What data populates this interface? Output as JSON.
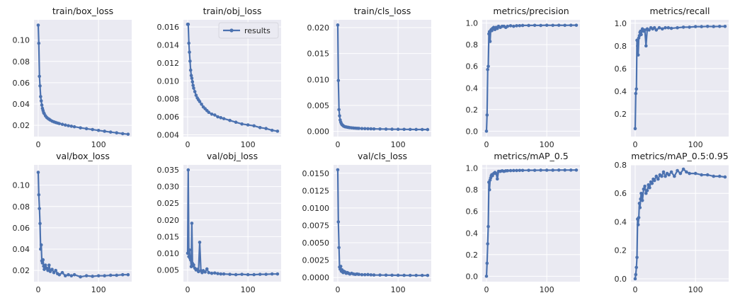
{
  "figure": {
    "background": "#ffffff",
    "panel_background": "#eaeaf2",
    "grid_color": "#ffffff",
    "line_color": "#4c72b0",
    "legend": {
      "label": "results",
      "panel": "train/obj_loss",
      "placement": "upper right"
    }
  },
  "chart_data": [
    {
      "type": "line",
      "title": "train/box_loss",
      "xlim": [
        -7,
        155
      ],
      "ylim": [
        0.0095,
        0.119
      ],
      "xticks": [
        0,
        100
      ],
      "xticklabels": [
        "0",
        "100"
      ],
      "yticks": [
        0.02,
        0.04,
        0.06,
        0.08,
        0.1
      ],
      "yticklabels": [
        "0.02",
        "0.04",
        "0.06",
        "0.08",
        "0.10"
      ],
      "series": [
        {
          "name": "results",
          "x": [
            0,
            1,
            2,
            3,
            4,
            5,
            6,
            7,
            8,
            9,
            10,
            12,
            14,
            16,
            18,
            20,
            23,
            26,
            29,
            32,
            35,
            40,
            45,
            50,
            55,
            60,
            70,
            80,
            90,
            100,
            110,
            120,
            130,
            140,
            149
          ],
          "y": [
            0.114,
            0.097,
            0.066,
            0.057,
            0.047,
            0.043,
            0.039,
            0.036,
            0.034,
            0.032,
            0.031,
            0.029,
            0.0275,
            0.0265,
            0.0258,
            0.025,
            0.024,
            0.0233,
            0.0227,
            0.0222,
            0.0217,
            0.021,
            0.0203,
            0.0197,
            0.0192,
            0.0187,
            0.0177,
            0.0169,
            0.0161,
            0.0153,
            0.0145,
            0.0137,
            0.013,
            0.0122,
            0.0117
          ]
        }
      ]
    },
    {
      "type": "line",
      "title": "train/obj_loss",
      "xlim": [
        -7,
        155
      ],
      "ylim": [
        0.0038,
        0.0168
      ],
      "xticks": [
        0,
        100
      ],
      "xticklabels": [
        "0",
        "100"
      ],
      "yticks": [
        0.004,
        0.006,
        0.008,
        0.01,
        0.012,
        0.014,
        0.016
      ],
      "yticklabels": [
        "0.004",
        "0.006",
        "0.008",
        "0.010",
        "0.012",
        "0.014",
        "0.016"
      ],
      "series": [
        {
          "name": "results",
          "x": [
            0,
            1,
            2,
            3,
            4,
            5,
            6,
            7,
            8,
            9,
            10,
            12,
            14,
            16,
            18,
            20,
            23,
            26,
            29,
            32,
            35,
            40,
            45,
            50,
            55,
            60,
            70,
            80,
            90,
            100,
            110,
            120,
            130,
            140,
            149
          ],
          "y": [
            0.0163,
            0.0163,
            0.0142,
            0.0132,
            0.0122,
            0.0112,
            0.0106,
            0.0103,
            0.0099,
            0.0095,
            0.0092,
            0.0088,
            0.0084,
            0.0081,
            0.0079,
            0.0077,
            0.0074,
            0.0071,
            0.0069,
            0.0067,
            0.0065,
            0.0063,
            0.0062,
            0.006,
            0.0059,
            0.0058,
            0.0056,
            0.0054,
            0.0052,
            0.0051,
            0.005,
            0.0048,
            0.0047,
            0.0045,
            0.0044
          ]
        }
      ]
    },
    {
      "type": "line",
      "title": "train/cls_loss",
      "xlim": [
        -7,
        155
      ],
      "ylim": [
        -0.001,
        0.0215
      ],
      "xticks": [
        0,
        100
      ],
      "xticklabels": [
        "0",
        "100"
      ],
      "yticks": [
        0,
        0.005,
        0.01,
        0.015,
        0.02
      ],
      "yticklabels": [
        "0.000",
        "0.005",
        "0.010",
        "0.015",
        "0.020"
      ],
      "series": [
        {
          "name": "results",
          "x": [
            0,
            1,
            2,
            3,
            4,
            5,
            6,
            7,
            8,
            9,
            10,
            12,
            14,
            16,
            18,
            20,
            23,
            26,
            29,
            32,
            35,
            40,
            45,
            50,
            55,
            60,
            70,
            80,
            90,
            100,
            110,
            120,
            130,
            140,
            149
          ],
          "y": [
            0.0205,
            0.0098,
            0.0042,
            0.003,
            0.0022,
            0.0018,
            0.0015,
            0.0013,
            0.0012,
            0.0011,
            0.001,
            0.0009,
            0.00085,
            0.0008,
            0.00076,
            0.00072,
            0.00068,
            0.00065,
            0.00062,
            0.0006,
            0.00058,
            0.00055,
            0.00053,
            0.00051,
            0.0005,
            0.00048,
            0.00046,
            0.00044,
            0.00042,
            0.0004,
            0.00039,
            0.00038,
            0.00037,
            0.00036,
            0.00035
          ]
        }
      ]
    },
    {
      "type": "line",
      "title": "metrics/precision",
      "xlim": [
        -7,
        155
      ],
      "ylim": [
        -0.05,
        1.03
      ],
      "xticks": [
        0,
        100
      ],
      "xticklabels": [
        "0",
        "100"
      ],
      "yticks": [
        0,
        0.2,
        0.4,
        0.6,
        0.8,
        1.0
      ],
      "yticklabels": [
        "0.0",
        "0.2",
        "0.4",
        "0.6",
        "0.8",
        "1.0"
      ],
      "series": [
        {
          "name": "results",
          "x": [
            0,
            1,
            2,
            3,
            4,
            5,
            6,
            7,
            8,
            9,
            10,
            12,
            14,
            16,
            18,
            20,
            23,
            26,
            29,
            32,
            35,
            40,
            45,
            50,
            55,
            60,
            70,
            80,
            90,
            100,
            110,
            120,
            130,
            140,
            149
          ],
          "y": [
            0.0,
            0.15,
            0.57,
            0.6,
            0.9,
            0.92,
            0.83,
            0.93,
            0.94,
            0.93,
            0.95,
            0.96,
            0.94,
            0.96,
            0.95,
            0.97,
            0.96,
            0.97,
            0.97,
            0.96,
            0.97,
            0.975,
            0.97,
            0.975,
            0.976,
            0.978,
            0.978,
            0.979,
            0.978,
            0.98,
            0.979,
            0.98,
            0.979,
            0.98,
            0.98
          ]
        }
      ]
    },
    {
      "type": "line",
      "title": "metrics/recall",
      "xlim": [
        -7,
        155
      ],
      "ylim": [
        0.0,
        1.03
      ],
      "xticks": [
        0,
        100
      ],
      "xticklabels": [
        "0",
        "100"
      ],
      "yticks": [
        0.2,
        0.4,
        0.6,
        0.8,
        1.0
      ],
      "yticklabels": [
        "0.2",
        "0.4",
        "0.6",
        "0.8",
        "1.0"
      ],
      "series": [
        {
          "name": "results",
          "x": [
            0,
            1,
            2,
            3,
            4,
            5,
            6,
            7,
            8,
            9,
            10,
            12,
            14,
            16,
            18,
            20,
            23,
            26,
            29,
            32,
            35,
            40,
            45,
            50,
            55,
            60,
            70,
            80,
            90,
            100,
            110,
            120,
            130,
            140,
            149
          ],
          "y": [
            0.07,
            0.38,
            0.42,
            0.85,
            0.8,
            0.72,
            0.87,
            0.89,
            0.92,
            0.93,
            0.9,
            0.95,
            0.93,
            0.94,
            0.8,
            0.95,
            0.94,
            0.96,
            0.95,
            0.96,
            0.94,
            0.96,
            0.95,
            0.96,
            0.96,
            0.955,
            0.96,
            0.965,
            0.965,
            0.97,
            0.97,
            0.972,
            0.971,
            0.972,
            0.972
          ]
        }
      ]
    },
    {
      "type": "line",
      "title": "val/box_loss",
      "xlim": [
        -7,
        155
      ],
      "ylim": [
        0.0095,
        0.119
      ],
      "xticks": [
        0,
        100
      ],
      "xticklabels": [
        "0",
        "100"
      ],
      "yticks": [
        0.02,
        0.04,
        0.06,
        0.08,
        0.1
      ],
      "yticklabels": [
        "0.02",
        "0.04",
        "0.06",
        "0.08",
        "0.10"
      ],
      "series": [
        {
          "name": "results",
          "x": [
            0,
            1,
            2,
            3,
            4,
            5,
            6,
            7,
            8,
            9,
            10,
            12,
            14,
            16,
            18,
            20,
            23,
            26,
            29,
            32,
            35,
            40,
            45,
            50,
            55,
            60,
            70,
            80,
            90,
            100,
            110,
            120,
            130,
            140,
            149
          ],
          "y": [
            0.112,
            0.091,
            0.078,
            0.064,
            0.04,
            0.044,
            0.029,
            0.027,
            0.03,
            0.024,
            0.021,
            0.025,
            0.022,
            0.02,
            0.025,
            0.019,
            0.021,
            0.018,
            0.02,
            0.017,
            0.016,
            0.018,
            0.015,
            0.016,
            0.015,
            0.016,
            0.014,
            0.015,
            0.0145,
            0.015,
            0.015,
            0.0155,
            0.0155,
            0.016,
            0.016
          ]
        }
      ]
    },
    {
      "type": "line",
      "title": "val/obj_loss",
      "xlim": [
        -7,
        155
      ],
      "ylim": [
        0.0015,
        0.0365
      ],
      "xticks": [
        0,
        100
      ],
      "xticklabels": [
        "0",
        "100"
      ],
      "yticks": [
        0.005,
        0.01,
        0.015,
        0.02,
        0.025,
        0.03,
        0.035
      ],
      "yticklabels": [
        "0.005",
        "0.010",
        "0.015",
        "0.020",
        "0.025",
        "0.030",
        "0.035"
      ],
      "series": [
        {
          "name": "results",
          "x": [
            0,
            1,
            2,
            3,
            4,
            5,
            6,
            7,
            8,
            9,
            10,
            12,
            14,
            16,
            18,
            20,
            22,
            24,
            26,
            29,
            32,
            35,
            40,
            45,
            50,
            55,
            60,
            70,
            80,
            90,
            100,
            110,
            120,
            130,
            140,
            149
          ],
          "y": [
            0.01,
            0.035,
            0.009,
            0.011,
            0.0085,
            0.008,
            0.006,
            0.019,
            0.007,
            0.0062,
            0.0065,
            0.0055,
            0.005,
            0.0052,
            0.0045,
            0.0133,
            0.0048,
            0.0042,
            0.0048,
            0.0044,
            0.0053,
            0.0042,
            0.004,
            0.0041,
            0.0039,
            0.0038,
            0.0038,
            0.0037,
            0.0036,
            0.0037,
            0.0036,
            0.0036,
            0.0037,
            0.0037,
            0.0038,
            0.0038
          ]
        }
      ]
    },
    {
      "type": "line",
      "title": "val/cls_loss",
      "xlim": [
        -7,
        155
      ],
      "ylim": [
        -0.0006,
        0.0162
      ],
      "xticks": [
        0,
        100
      ],
      "xticklabels": [
        "0",
        "100"
      ],
      "yticks": [
        0,
        0.0025,
        0.005,
        0.0075,
        0.01,
        0.0125,
        0.015
      ],
      "yticklabels": [
        "0.0000",
        "0.0025",
        "0.0050",
        "0.0075",
        "0.0100",
        "0.0125",
        "0.0150"
      ],
      "series": [
        {
          "name": "results",
          "x": [
            0,
            1,
            2,
            3,
            4,
            5,
            6,
            7,
            8,
            9,
            10,
            12,
            14,
            16,
            18,
            20,
            23,
            26,
            29,
            32,
            35,
            40,
            45,
            50,
            55,
            60,
            70,
            80,
            90,
            100,
            110,
            120,
            130,
            140,
            149
          ],
          "y": [
            0.0155,
            0.008,
            0.0043,
            0.0015,
            0.0012,
            0.0016,
            0.0009,
            0.0011,
            0.0008,
            0.0007,
            0.0009,
            0.0008,
            0.0006,
            0.0007,
            0.0006,
            0.0005,
            0.0006,
            0.0005,
            0.00045,
            0.0005,
            0.00045,
            0.0004,
            0.0004,
            0.00042,
            0.00038,
            0.00036,
            0.00035,
            0.00034,
            0.00033,
            0.00032,
            0.00031,
            0.0003,
            0.0003,
            0.0003,
            0.0003
          ]
        }
      ]
    },
    {
      "type": "line",
      "title": "metrics/mAP_0.5",
      "xlim": [
        -7,
        155
      ],
      "ylim": [
        -0.05,
        1.03
      ],
      "xticks": [
        0,
        100
      ],
      "xticklabels": [
        "0",
        "100"
      ],
      "yticks": [
        0,
        0.2,
        0.4,
        0.6,
        0.8,
        1.0
      ],
      "yticklabels": [
        "0.0",
        "0.2",
        "0.4",
        "0.6",
        "0.8",
        "1.0"
      ],
      "series": [
        {
          "name": "results",
          "x": [
            0,
            1,
            2,
            3,
            4,
            5,
            6,
            7,
            8,
            9,
            10,
            12,
            14,
            16,
            18,
            20,
            23,
            26,
            29,
            32,
            35,
            40,
            45,
            50,
            55,
            60,
            70,
            80,
            90,
            100,
            110,
            120,
            130,
            140,
            149
          ],
          "y": [
            0.0,
            0.12,
            0.3,
            0.46,
            0.87,
            0.8,
            0.89,
            0.91,
            0.93,
            0.94,
            0.93,
            0.95,
            0.96,
            0.95,
            0.9,
            0.97,
            0.97,
            0.975,
            0.97,
            0.975,
            0.976,
            0.977,
            0.978,
            0.978,
            0.979,
            0.979,
            0.98,
            0.98,
            0.981,
            0.981,
            0.981,
            0.982,
            0.982,
            0.982,
            0.982
          ]
        }
      ]
    },
    {
      "type": "line",
      "title": "metrics/mAP_0.5:0.95",
      "xlim": [
        -7,
        155
      ],
      "ylim": [
        -0.02,
        0.8
      ],
      "xticks": [
        0,
        100
      ],
      "xticklabels": [
        "0",
        "100"
      ],
      "yticks": [
        0,
        0.2,
        0.4,
        0.6,
        0.8
      ],
      "yticklabels": [
        "0.0",
        "0.2",
        "0.4",
        "0.6",
        "0.8"
      ],
      "series": [
        {
          "name": "results",
          "x": [
            0,
            1,
            2,
            3,
            4,
            5,
            6,
            7,
            8,
            9,
            10,
            12,
            14,
            16,
            18,
            20,
            22,
            24,
            26,
            28,
            30,
            32,
            35,
            38,
            41,
            44,
            47,
            50,
            53,
            56,
            60,
            65,
            70,
            75,
            80,
            85,
            90,
            100,
            110,
            120,
            130,
            140,
            149
          ],
          "y": [
            0.0,
            0.03,
            0.08,
            0.15,
            0.42,
            0.38,
            0.43,
            0.53,
            0.5,
            0.56,
            0.6,
            0.55,
            0.63,
            0.65,
            0.6,
            0.62,
            0.66,
            0.64,
            0.68,
            0.67,
            0.7,
            0.69,
            0.72,
            0.7,
            0.73,
            0.72,
            0.75,
            0.72,
            0.74,
            0.73,
            0.75,
            0.72,
            0.76,
            0.74,
            0.77,
            0.75,
            0.74,
            0.74,
            0.73,
            0.73,
            0.72,
            0.72,
            0.715
          ]
        }
      ]
    }
  ]
}
